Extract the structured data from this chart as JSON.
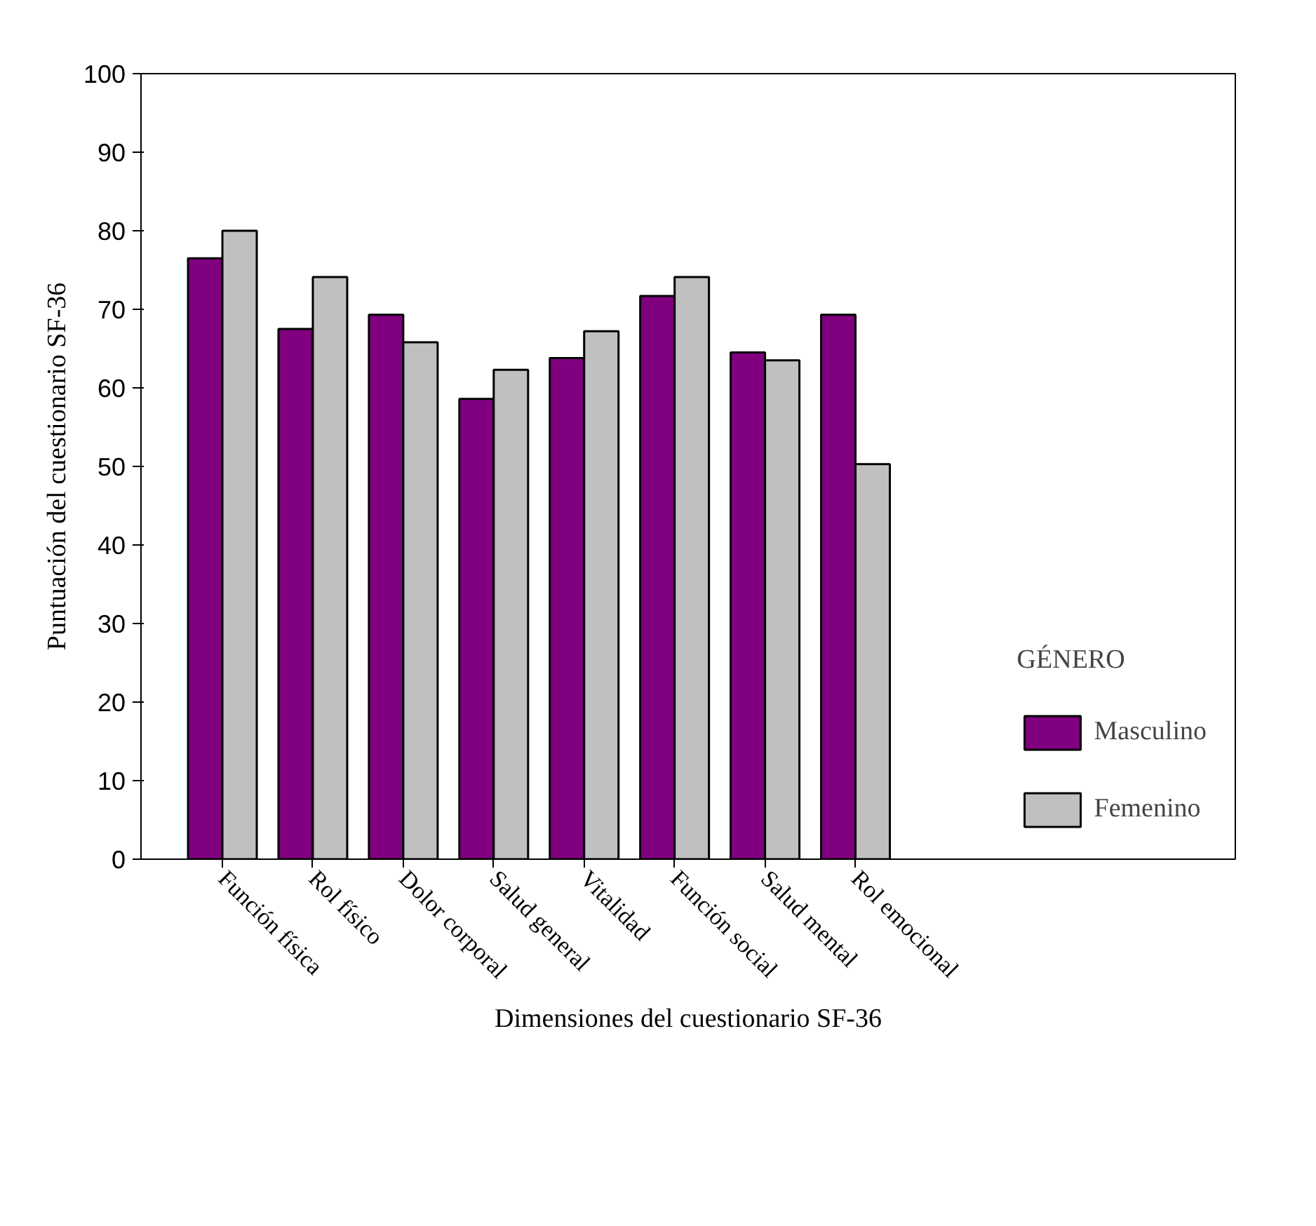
{
  "chart_data": {
    "type": "bar",
    "xlabel": "Dimensiones del cuestionario SF-36",
    "ylabel": "Puntuación del cuestionario SF-36",
    "legend_title": "GÉNERO",
    "legend": "right",
    "categories": [
      "Función física",
      "Rol físico",
      "Dolor corporal",
      "Salud general",
      "Vitalidad",
      "Función social",
      "Salud mental",
      "Rol emocional"
    ],
    "series": [
      {
        "name": "Masculino",
        "color": "#800080",
        "values": [
          76.5,
          67.5,
          69.3,
          58.6,
          63.8,
          71.7,
          64.5,
          69.3
        ]
      },
      {
        "name": "Femenino",
        "color": "#c0c0c0",
        "values": [
          80.0,
          74.1,
          65.8,
          62.3,
          67.2,
          74.1,
          63.5,
          50.3
        ]
      }
    ],
    "ylim": [
      0,
      100
    ],
    "yticks": [
      0,
      10,
      20,
      30,
      40,
      50,
      60,
      70,
      80,
      90,
      100
    ]
  }
}
